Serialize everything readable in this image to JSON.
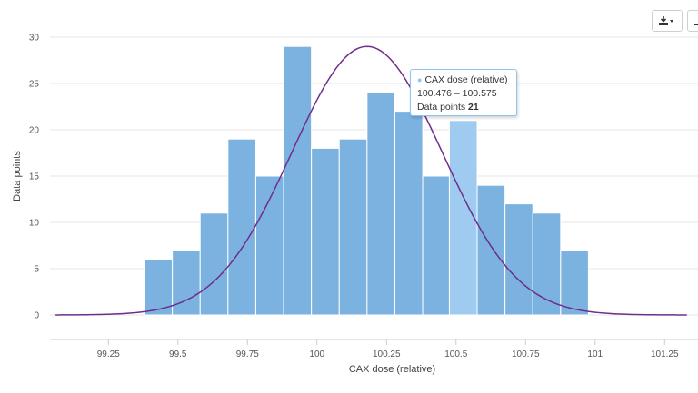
{
  "chart_data": {
    "type": "bar",
    "title": "",
    "xlabel": "CAX dose (relative)",
    "ylabel": "Data points",
    "xlim": [
      99.04,
      101.37
    ],
    "ylim": [
      0,
      30
    ],
    "x_ticks": [
      "99.25",
      "99.5",
      "99.75",
      "100",
      "100.25",
      "100.5",
      "100.75",
      "101",
      "101.25"
    ],
    "y_ticks": [
      "0",
      "5",
      "10",
      "15",
      "20",
      "25",
      "30"
    ],
    "grid": true,
    "bin_width": 0.1,
    "bins": [
      {
        "start": 99.38,
        "value": 6
      },
      {
        "start": 99.48,
        "value": 7
      },
      {
        "start": 99.58,
        "value": 11
      },
      {
        "start": 99.68,
        "value": 19
      },
      {
        "start": 99.78,
        "value": 15
      },
      {
        "start": 99.88,
        "value": 29
      },
      {
        "start": 99.98,
        "value": 18
      },
      {
        "start": 100.08,
        "value": 19
      },
      {
        "start": 100.18,
        "value": 24
      },
      {
        "start": 100.28,
        "value": 22
      },
      {
        "start": 100.38,
        "value": 15
      },
      {
        "start": 100.476,
        "value": 21
      },
      {
        "start": 100.576,
        "value": 14
      },
      {
        "start": 100.676,
        "value": 12
      },
      {
        "start": 100.776,
        "value": 11
      },
      {
        "start": 100.876,
        "value": 7
      }
    ],
    "highlight_index": 11,
    "fit_curve": {
      "type": "normal",
      "mean": 100.18,
      "sd": 0.27,
      "peak": 29
    },
    "colors": {
      "bar": "#7cb2e0",
      "highlight": "#9fcbf1",
      "curve": "#6f2e8e"
    }
  },
  "tooltip": {
    "series": "CAX dose (relative)",
    "range": "100.476 – 100.575",
    "label": "Data points",
    "value": "21"
  },
  "toolbar": {
    "export_icon": "download-icon",
    "menu_icon": "menu-icon"
  }
}
